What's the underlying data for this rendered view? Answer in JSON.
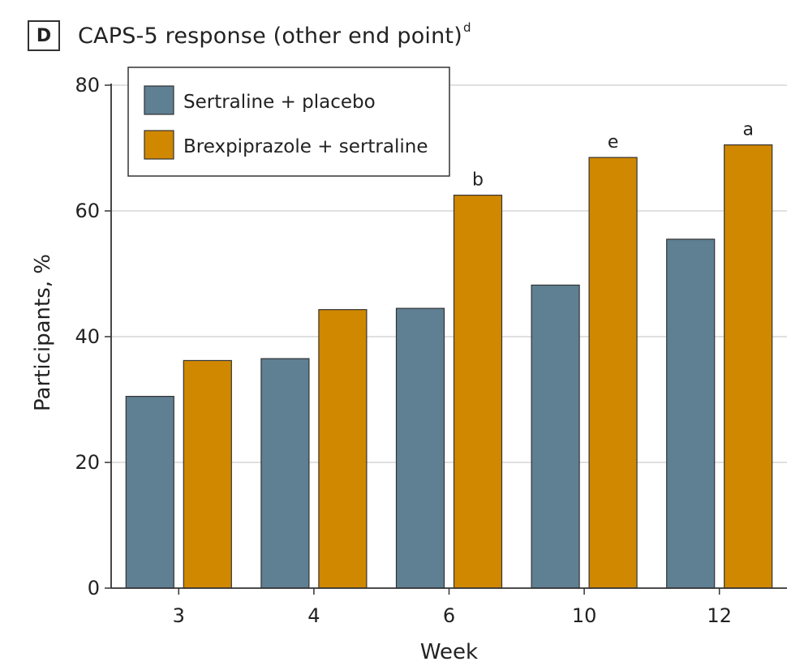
{
  "panel": {
    "letter": "D",
    "title": "CAPS-5 response (other end point)",
    "title_superscript": "d"
  },
  "chart_data": {
    "type": "bar",
    "title": "CAPS-5 response (other end point)",
    "xlabel": "Week",
    "ylabel": "Participants, %",
    "ylim": [
      0,
      80
    ],
    "yticks": [
      0,
      20,
      40,
      60,
      80
    ],
    "grid": true,
    "legend_position": "top-left",
    "categories": [
      "3",
      "4",
      "6",
      "10",
      "12"
    ],
    "series": [
      {
        "name": "Sertraline + placebo",
        "color": "#5f7f93",
        "values": [
          30.5,
          36.5,
          44.5,
          48.2,
          55.5
        ]
      },
      {
        "name": "Brexpiprazole + sertraline",
        "color": "#d08800",
        "values": [
          36.2,
          44.3,
          62.5,
          68.5,
          70.5
        ]
      }
    ],
    "annotations": [
      {
        "category": "6",
        "series": 1,
        "label": "b"
      },
      {
        "category": "10",
        "series": 1,
        "label": "e"
      },
      {
        "category": "12",
        "series": 1,
        "label": "a"
      }
    ]
  }
}
